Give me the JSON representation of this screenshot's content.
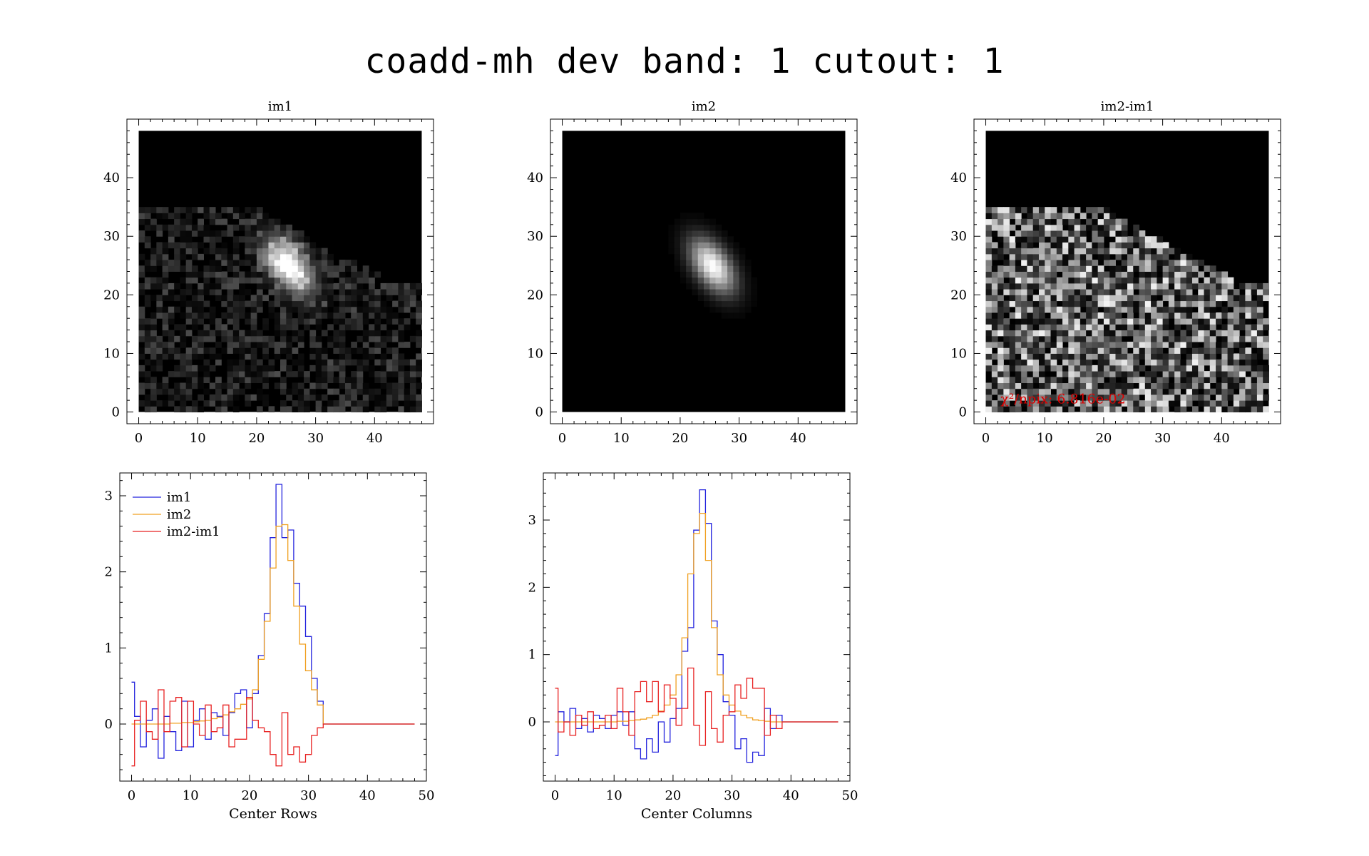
{
  "title": "coadd-mh dev band: 1 cutout: 1",
  "colors": {
    "im1": "#2222dd",
    "im2": "#f0a020",
    "diff": "#e82222",
    "annotation": "#dd0000"
  },
  "chart_data": [
    {
      "type": "heatmap",
      "title": "im1",
      "xlim": [
        -2,
        50
      ],
      "ylim": [
        -2,
        50
      ],
      "xticks": [
        0,
        10,
        20,
        30,
        40
      ],
      "yticks": [
        0,
        10,
        20,
        30,
        40
      ],
      "image_extent": [
        0,
        48
      ]
    },
    {
      "type": "heatmap",
      "title": "im2",
      "xlim": [
        -2,
        50
      ],
      "ylim": [
        -2,
        50
      ],
      "xticks": [
        0,
        10,
        20,
        30,
        40
      ],
      "yticks": [
        0,
        10,
        20,
        30,
        40
      ],
      "image_extent": [
        0,
        48
      ]
    },
    {
      "type": "heatmap",
      "title": "im2-im1",
      "xlim": [
        -2,
        50
      ],
      "ylim": [
        -2,
        50
      ],
      "xticks": [
        0,
        10,
        20,
        30,
        40
      ],
      "yticks": [
        0,
        10,
        20,
        30,
        40
      ],
      "image_extent": [
        0,
        48
      ],
      "annotation": "χ²/npix: 6.816e-02"
    },
    {
      "type": "line",
      "title": "",
      "xlabel": "Center Rows",
      "ylabel": "",
      "xlim": [
        -2,
        50
      ],
      "ylim": [
        -0.75,
        3.3
      ],
      "xticks": [
        0,
        10,
        20,
        30,
        40,
        50
      ],
      "yticks": [
        0,
        1,
        2,
        3
      ],
      "legend": "top-left",
      "series": [
        {
          "name": "im1",
          "values": [
            0.55,
            0.1,
            -0.3,
            0.05,
            0.2,
            -0.45,
            0.1,
            -0.1,
            -0.35,
            0.3,
            -0.3,
            0.05,
            0.2,
            -0.2,
            0.15,
            0.1,
            -0.15,
            0.15,
            0.4,
            0.45,
            -0.05,
            0.4,
            0.9,
            1.45,
            2.45,
            3.15,
            2.45,
            2.55,
            1.85,
            1.55,
            1.15,
            0.6,
            0.3,
            0.0,
            0.0,
            0.0,
            0.0,
            0.0,
            0.0,
            0.0,
            0.0,
            0.0,
            0.0,
            0.0,
            0.0,
            0.0,
            0.0,
            0.0,
            0.0
          ]
        },
        {
          "name": "im2",
          "values": [
            0.0,
            0.0,
            0.0,
            0.0,
            0.0,
            0.0,
            0.0,
            0.01,
            0.01,
            0.02,
            0.02,
            0.03,
            0.04,
            0.05,
            0.07,
            0.09,
            0.12,
            0.16,
            0.2,
            0.26,
            0.33,
            0.45,
            0.85,
            1.35,
            2.05,
            2.6,
            2.62,
            2.15,
            1.55,
            1.05,
            0.7,
            0.45,
            0.25,
            0.0,
            0.0,
            0.0,
            0.0,
            0.0,
            0.0,
            0.0,
            0.0,
            0.0,
            0.0,
            0.0,
            0.0,
            0.0,
            0.0,
            0.0,
            0.0
          ]
        },
        {
          "name": "im2-im1",
          "values": [
            -0.55,
            0.05,
            0.3,
            -0.1,
            -0.2,
            0.45,
            -0.1,
            0.3,
            0.35,
            -0.3,
            0.3,
            0.0,
            -0.15,
            0.25,
            -0.1,
            -0.05,
            0.25,
            -0.3,
            -0.2,
            -0.2,
            0.35,
            0.05,
            -0.05,
            -0.1,
            -0.4,
            -0.55,
            0.15,
            -0.4,
            -0.3,
            -0.5,
            -0.4,
            -0.15,
            -0.05,
            0.0,
            0.0,
            0.0,
            0.0,
            0.0,
            0.0,
            0.0,
            0.0,
            0.0,
            0.0,
            0.0,
            0.0,
            0.0,
            0.0,
            0.0,
            0.0
          ]
        }
      ]
    },
    {
      "type": "line",
      "title": "",
      "xlabel": "Center Columns",
      "ylabel": "",
      "xlim": [
        -2,
        50
      ],
      "ylim": [
        -0.88,
        3.7
      ],
      "xticks": [
        0,
        10,
        20,
        30,
        40,
        50
      ],
      "yticks": [
        0,
        1,
        2,
        3
      ],
      "series": [
        {
          "name": "im1",
          "values": [
            -0.5,
            0.15,
            0.0,
            0.2,
            -0.1,
            0.05,
            -0.15,
            0.1,
            0.05,
            -0.1,
            0.1,
            0.15,
            -0.05,
            0.15,
            -0.4,
            -0.55,
            -0.25,
            -0.45,
            0.0,
            -0.3,
            0.05,
            0.2,
            1.05,
            1.4,
            2.85,
            3.45,
            2.95,
            1.5,
            1.0,
            0.3,
            0.1,
            -0.4,
            -0.25,
            -0.6,
            -0.45,
            -0.5,
            0.2,
            -0.1,
            0.1,
            0.0,
            0.0,
            0.0,
            0.0,
            0.0,
            0.0,
            0.0,
            0.0,
            0.0,
            0.0
          ]
        },
        {
          "name": "im2",
          "values": [
            0.0,
            0.0,
            0.0,
            0.0,
            0.0,
            0.0,
            0.0,
            0.0,
            0.0,
            0.0,
            0.0,
            0.01,
            0.01,
            0.02,
            0.03,
            0.04,
            0.06,
            0.1,
            0.16,
            0.25,
            0.4,
            0.7,
            1.25,
            2.2,
            2.8,
            3.1,
            2.4,
            1.4,
            0.7,
            0.4,
            0.25,
            0.16,
            0.1,
            0.06,
            0.03,
            0.02,
            0.01,
            0.0,
            0.0,
            0.0,
            0.0,
            0.0,
            0.0,
            0.0,
            0.0,
            0.0,
            0.0,
            0.0,
            0.0
          ]
        },
        {
          "name": "im2-im1",
          "values": [
            0.5,
            -0.15,
            0.0,
            -0.2,
            0.1,
            -0.05,
            0.15,
            -0.1,
            -0.05,
            0.1,
            -0.1,
            0.5,
            0.15,
            -0.2,
            0.45,
            0.6,
            0.3,
            0.6,
            0.15,
            0.55,
            0.35,
            -0.05,
            0.2,
            0.8,
            -0.05,
            -0.35,
            0.45,
            -0.1,
            -0.3,
            0.1,
            0.15,
            0.55,
            0.35,
            0.65,
            0.5,
            0.5,
            -0.2,
            0.1,
            -0.1,
            0.0,
            0.0,
            0.0,
            0.0,
            0.0,
            0.0,
            0.0,
            0.0,
            0.0,
            0.0
          ]
        }
      ]
    }
  ]
}
